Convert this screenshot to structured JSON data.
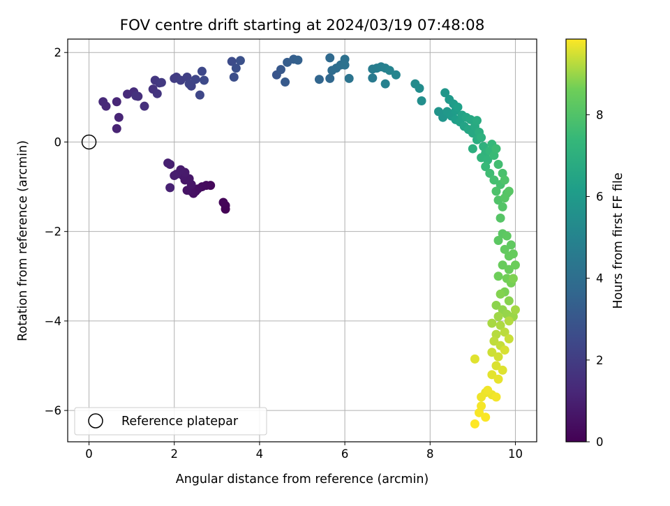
{
  "chart_data": {
    "type": "scatter",
    "title": "FOV centre drift starting at 2024/03/19 07:48:08",
    "xlabel": "Angular distance from reference (arcmin)",
    "ylabel": "Rotation from reference (arcmin)",
    "xlim": [
      -0.5,
      10.5
    ],
    "ylim": [
      -6.7,
      2.3
    ],
    "xticks": [
      0,
      2,
      4,
      6,
      8,
      10
    ],
    "yticks": [
      -6,
      -4,
      -2,
      0,
      2
    ],
    "xtick_labels": [
      "0",
      "2",
      "4",
      "6",
      "8",
      "10"
    ],
    "ytick_labels": [
      "−6",
      "−4",
      "−2",
      "0",
      "2"
    ],
    "grid": true,
    "legend": {
      "placement": "lower-left",
      "entries": [
        {
          "label": "Reference platepar",
          "marker": "open-circle"
        }
      ]
    },
    "reference_point": {
      "x": 0,
      "y": 0
    },
    "colorbar": {
      "label": "Hours from first FF file",
      "colormap": "viridis",
      "range": [
        0,
        9.85
      ],
      "ticks": [
        0,
        2,
        4,
        6,
        8
      ],
      "tick_labels": [
        "0",
        "2",
        "4",
        "6",
        "8"
      ]
    },
    "series": [
      {
        "points": [
          {
            "x": 3.2,
            "y": -1.5,
            "h": 0.05
          },
          {
            "x": 3.2,
            "y": -1.42,
            "h": 0.1
          },
          {
            "x": 3.15,
            "y": -1.35,
            "h": 0.15
          },
          {
            "x": 2.85,
            "y": -0.97,
            "h": 0.22
          },
          {
            "x": 2.75,
            "y": -0.97,
            "h": 0.28
          },
          {
            "x": 2.65,
            "y": -1.0,
            "h": 0.33
          },
          {
            "x": 2.55,
            "y": -1.05,
            "h": 0.38
          },
          {
            "x": 2.5,
            "y": -1.1,
            "h": 0.43
          },
          {
            "x": 2.45,
            "y": -1.15,
            "h": 0.48
          },
          {
            "x": 2.4,
            "y": -1.1,
            "h": 0.52
          },
          {
            "x": 2.3,
            "y": -1.08,
            "h": 0.57
          },
          {
            "x": 2.4,
            "y": -0.95,
            "h": 0.62
          },
          {
            "x": 2.25,
            "y": -0.85,
            "h": 0.66
          },
          {
            "x": 2.35,
            "y": -0.82,
            "h": 0.7
          },
          {
            "x": 2.2,
            "y": -0.75,
            "h": 0.74
          },
          {
            "x": 2.25,
            "y": -0.68,
            "h": 0.78
          },
          {
            "x": 2.15,
            "y": -0.62,
            "h": 0.82
          },
          {
            "x": 2.05,
            "y": -0.72,
            "h": 0.86
          },
          {
            "x": 2.0,
            "y": -0.75,
            "h": 0.9
          },
          {
            "x": 1.9,
            "y": -0.5,
            "h": 0.94
          },
          {
            "x": 1.85,
            "y": -0.47,
            "h": 0.98
          },
          {
            "x": 1.9,
            "y": -1.02,
            "h": 1.02
          },
          {
            "x": 0.65,
            "y": 0.3,
            "h": 1.1
          },
          {
            "x": 0.7,
            "y": 0.55,
            "h": 1.15
          },
          {
            "x": 0.65,
            "y": 0.9,
            "h": 1.2
          },
          {
            "x": 0.4,
            "y": 0.8,
            "h": 1.25
          },
          {
            "x": 0.33,
            "y": 0.9,
            "h": 1.3
          },
          {
            "x": 0.9,
            "y": 1.07,
            "h": 1.36
          },
          {
            "x": 1.05,
            "y": 1.12,
            "h": 1.42
          },
          {
            "x": 1.15,
            "y": 1.02,
            "h": 1.48
          },
          {
            "x": 1.3,
            "y": 0.8,
            "h": 1.54
          },
          {
            "x": 1.1,
            "y": 1.03,
            "h": 1.6
          },
          {
            "x": 1.5,
            "y": 1.18,
            "h": 1.66
          },
          {
            "x": 1.6,
            "y": 1.08,
            "h": 1.72
          },
          {
            "x": 1.55,
            "y": 1.38,
            "h": 1.78
          },
          {
            "x": 1.65,
            "y": 1.32,
            "h": 1.84
          },
          {
            "x": 1.7,
            "y": 1.33,
            "h": 1.9
          },
          {
            "x": 2.05,
            "y": 1.45,
            "h": 1.96
          },
          {
            "x": 2.0,
            "y": 1.42,
            "h": 2.02
          },
          {
            "x": 2.15,
            "y": 1.38,
            "h": 2.08
          },
          {
            "x": 2.3,
            "y": 1.45,
            "h": 2.14
          },
          {
            "x": 2.4,
            "y": 1.25,
            "h": 2.2
          },
          {
            "x": 2.35,
            "y": 1.3,
            "h": 2.26
          },
          {
            "x": 2.5,
            "y": 1.4,
            "h": 2.32
          },
          {
            "x": 2.6,
            "y": 1.05,
            "h": 2.38
          },
          {
            "x": 2.65,
            "y": 1.58,
            "h": 2.44
          },
          {
            "x": 2.7,
            "y": 1.38,
            "h": 2.5
          },
          {
            "x": 3.35,
            "y": 1.8,
            "h": 2.6
          },
          {
            "x": 3.4,
            "y": 1.45,
            "h": 2.66
          },
          {
            "x": 3.45,
            "y": 1.65,
            "h": 2.72
          },
          {
            "x": 3.55,
            "y": 1.82,
            "h": 2.78
          },
          {
            "x": 4.4,
            "y": 1.5,
            "h": 2.95
          },
          {
            "x": 4.5,
            "y": 1.62,
            "h": 3.05
          },
          {
            "x": 4.6,
            "y": 1.34,
            "h": 3.15
          },
          {
            "x": 4.65,
            "y": 1.78,
            "h": 3.25
          },
          {
            "x": 4.8,
            "y": 1.85,
            "h": 3.35
          },
          {
            "x": 4.9,
            "y": 1.83,
            "h": 3.42
          },
          {
            "x": 5.4,
            "y": 1.4,
            "h": 3.6
          },
          {
            "x": 5.65,
            "y": 1.42,
            "h": 3.7
          },
          {
            "x": 5.65,
            "y": 1.88,
            "h": 3.78
          },
          {
            "x": 5.7,
            "y": 1.6,
            "h": 3.86
          },
          {
            "x": 5.8,
            "y": 1.65,
            "h": 3.94
          },
          {
            "x": 5.9,
            "y": 1.72,
            "h": 4.02
          },
          {
            "x": 6.0,
            "y": 1.85,
            "h": 4.1
          },
          {
            "x": 6.0,
            "y": 1.72,
            "h": 4.18
          },
          {
            "x": 6.1,
            "y": 1.42,
            "h": 4.26
          },
          {
            "x": 6.65,
            "y": 1.43,
            "h": 4.55
          },
          {
            "x": 6.65,
            "y": 1.63,
            "h": 4.62
          },
          {
            "x": 6.75,
            "y": 1.65,
            "h": 4.69
          },
          {
            "x": 6.85,
            "y": 1.68,
            "h": 4.76
          },
          {
            "x": 6.95,
            "y": 1.65,
            "h": 4.83
          },
          {
            "x": 6.95,
            "y": 1.3,
            "h": 4.9
          },
          {
            "x": 7.05,
            "y": 1.6,
            "h": 4.97
          },
          {
            "x": 7.2,
            "y": 1.5,
            "h": 5.04
          },
          {
            "x": 7.65,
            "y": 1.3,
            "h": 5.3
          },
          {
            "x": 7.75,
            "y": 1.2,
            "h": 5.38
          },
          {
            "x": 7.8,
            "y": 0.92,
            "h": 5.46
          },
          {
            "x": 8.2,
            "y": 0.68,
            "h": 5.7
          },
          {
            "x": 8.3,
            "y": 0.55,
            "h": 5.76
          },
          {
            "x": 8.35,
            "y": 1.1,
            "h": 5.82
          },
          {
            "x": 8.4,
            "y": 0.68,
            "h": 5.88
          },
          {
            "x": 8.45,
            "y": 0.95,
            "h": 5.94
          },
          {
            "x": 8.5,
            "y": 0.58,
            "h": 6.0
          },
          {
            "x": 8.55,
            "y": 0.85,
            "h": 6.06
          },
          {
            "x": 8.6,
            "y": 0.7,
            "h": 6.12
          },
          {
            "x": 8.6,
            "y": 0.5,
            "h": 6.18
          },
          {
            "x": 8.65,
            "y": 0.78,
            "h": 6.24
          },
          {
            "x": 8.7,
            "y": 0.45,
            "h": 6.3
          },
          {
            "x": 8.75,
            "y": 0.6,
            "h": 6.36
          },
          {
            "x": 8.8,
            "y": 0.35,
            "h": 6.42
          },
          {
            "x": 8.85,
            "y": 0.55,
            "h": 6.48
          },
          {
            "x": 8.9,
            "y": 0.28,
            "h": 6.54
          },
          {
            "x": 8.95,
            "y": 0.5,
            "h": 6.6
          },
          {
            "x": 9.0,
            "y": 0.2,
            "h": 6.66
          },
          {
            "x": 9.05,
            "y": 0.35,
            "h": 6.72
          },
          {
            "x": 9.1,
            "y": 0.48,
            "h": 6.78
          },
          {
            "x": 9.1,
            "y": 0.05,
            "h": 6.84
          },
          {
            "x": 9.15,
            "y": 0.22,
            "h": 6.9
          },
          {
            "x": 9.0,
            "y": -0.15,
            "h": 6.96
          },
          {
            "x": 9.2,
            "y": 0.1,
            "h": 7.02
          },
          {
            "x": 9.25,
            "y": -0.1,
            "h": 7.08
          },
          {
            "x": 9.3,
            "y": -0.25,
            "h": 7.14
          },
          {
            "x": 9.2,
            "y": -0.35,
            "h": 7.2
          },
          {
            "x": 9.35,
            "y": -0.4,
            "h": 7.26
          },
          {
            "x": 9.4,
            "y": -0.2,
            "h": 7.32
          },
          {
            "x": 9.45,
            "y": -0.05,
            "h": 7.38
          },
          {
            "x": 9.3,
            "y": -0.55,
            "h": 7.44
          },
          {
            "x": 9.5,
            "y": -0.3,
            "h": 7.5
          },
          {
            "x": 9.55,
            "y": -0.15,
            "h": 7.56
          },
          {
            "x": 9.4,
            "y": -0.7,
            "h": 7.62
          },
          {
            "x": 9.6,
            "y": -0.5,
            "h": 7.68
          },
          {
            "x": 9.5,
            "y": -0.85,
            "h": 7.74
          },
          {
            "x": 9.65,
            "y": -0.95,
            "h": 7.8
          },
          {
            "x": 9.7,
            "y": -0.7,
            "h": 7.85
          },
          {
            "x": 9.55,
            "y": -1.1,
            "h": 7.9
          },
          {
            "x": 9.75,
            "y": -0.85,
            "h": 7.95
          },
          {
            "x": 9.6,
            "y": -1.3,
            "h": 8.0
          },
          {
            "x": 9.8,
            "y": -1.15,
            "h": 8.03
          },
          {
            "x": 9.7,
            "y": -1.45,
            "h": 8.06
          },
          {
            "x": 9.65,
            "y": -1.7,
            "h": 8.09
          },
          {
            "x": 9.75,
            "y": -1.25,
            "h": 8.12
          },
          {
            "x": 9.85,
            "y": -1.1,
            "h": 8.15
          },
          {
            "x": 9.7,
            "y": -2.05,
            "h": 8.2
          },
          {
            "x": 9.6,
            "y": -2.2,
            "h": 8.24
          },
          {
            "x": 9.8,
            "y": -2.1,
            "h": 8.28
          },
          {
            "x": 9.9,
            "y": -2.3,
            "h": 8.32
          },
          {
            "x": 9.75,
            "y": -2.4,
            "h": 8.36
          },
          {
            "x": 9.85,
            "y": -2.55,
            "h": 8.4
          },
          {
            "x": 9.95,
            "y": -2.5,
            "h": 8.44
          },
          {
            "x": 9.7,
            "y": -2.75,
            "h": 8.48
          },
          {
            "x": 9.85,
            "y": -2.85,
            "h": 8.52
          },
          {
            "x": 10.0,
            "y": -2.75,
            "h": 8.56
          },
          {
            "x": 9.6,
            "y": -3.0,
            "h": 8.6
          },
          {
            "x": 9.8,
            "y": -3.05,
            "h": 8.64
          },
          {
            "x": 9.9,
            "y": -3.15,
            "h": 8.68
          },
          {
            "x": 9.75,
            "y": -3.35,
            "h": 8.72
          },
          {
            "x": 9.95,
            "y": -3.05,
            "h": 8.76
          },
          {
            "x": 9.65,
            "y": -3.4,
            "h": 8.8
          },
          {
            "x": 9.85,
            "y": -3.55,
            "h": 8.84
          },
          {
            "x": 9.55,
            "y": -3.65,
            "h": 8.88
          },
          {
            "x": 9.7,
            "y": -3.75,
            "h": 8.92
          },
          {
            "x": 9.8,
            "y": -3.85,
            "h": 8.96
          },
          {
            "x": 9.95,
            "y": -3.9,
            "h": 9.0
          },
          {
            "x": 9.6,
            "y": -3.9,
            "h": 9.04
          },
          {
            "x": 10.0,
            "y": -3.75,
            "h": 9.08
          },
          {
            "x": 9.45,
            "y": -4.05,
            "h": 9.12
          },
          {
            "x": 9.65,
            "y": -4.1,
            "h": 9.16
          },
          {
            "x": 9.85,
            "y": -4.0,
            "h": 9.2
          },
          {
            "x": 9.55,
            "y": -4.3,
            "h": 9.24
          },
          {
            "x": 9.75,
            "y": -4.25,
            "h": 9.28
          },
          {
            "x": 9.5,
            "y": -4.45,
            "h": 9.32
          },
          {
            "x": 9.65,
            "y": -4.55,
            "h": 9.36
          },
          {
            "x": 9.85,
            "y": -4.4,
            "h": 9.4
          },
          {
            "x": 9.45,
            "y": -4.7,
            "h": 9.44
          },
          {
            "x": 9.6,
            "y": -4.8,
            "h": 9.48
          },
          {
            "x": 9.75,
            "y": -4.65,
            "h": 9.52
          },
          {
            "x": 9.55,
            "y": -5.0,
            "h": 9.55
          },
          {
            "x": 9.7,
            "y": -5.1,
            "h": 9.58
          },
          {
            "x": 9.05,
            "y": -4.85,
            "h": 9.6
          },
          {
            "x": 9.45,
            "y": -5.2,
            "h": 9.63
          },
          {
            "x": 9.6,
            "y": -5.3,
            "h": 9.66
          },
          {
            "x": 9.3,
            "y": -5.6,
            "h": 9.68
          },
          {
            "x": 9.45,
            "y": -5.65,
            "h": 9.7
          },
          {
            "x": 9.2,
            "y": -5.7,
            "h": 9.72
          },
          {
            "x": 9.35,
            "y": -5.55,
            "h": 9.74
          },
          {
            "x": 9.55,
            "y": -5.7,
            "h": 9.76
          },
          {
            "x": 9.2,
            "y": -5.9,
            "h": 9.78
          },
          {
            "x": 9.15,
            "y": -6.05,
            "h": 9.8
          },
          {
            "x": 9.3,
            "y": -6.15,
            "h": 9.82
          },
          {
            "x": 9.05,
            "y": -6.3,
            "h": 9.85
          }
        ]
      }
    ]
  }
}
